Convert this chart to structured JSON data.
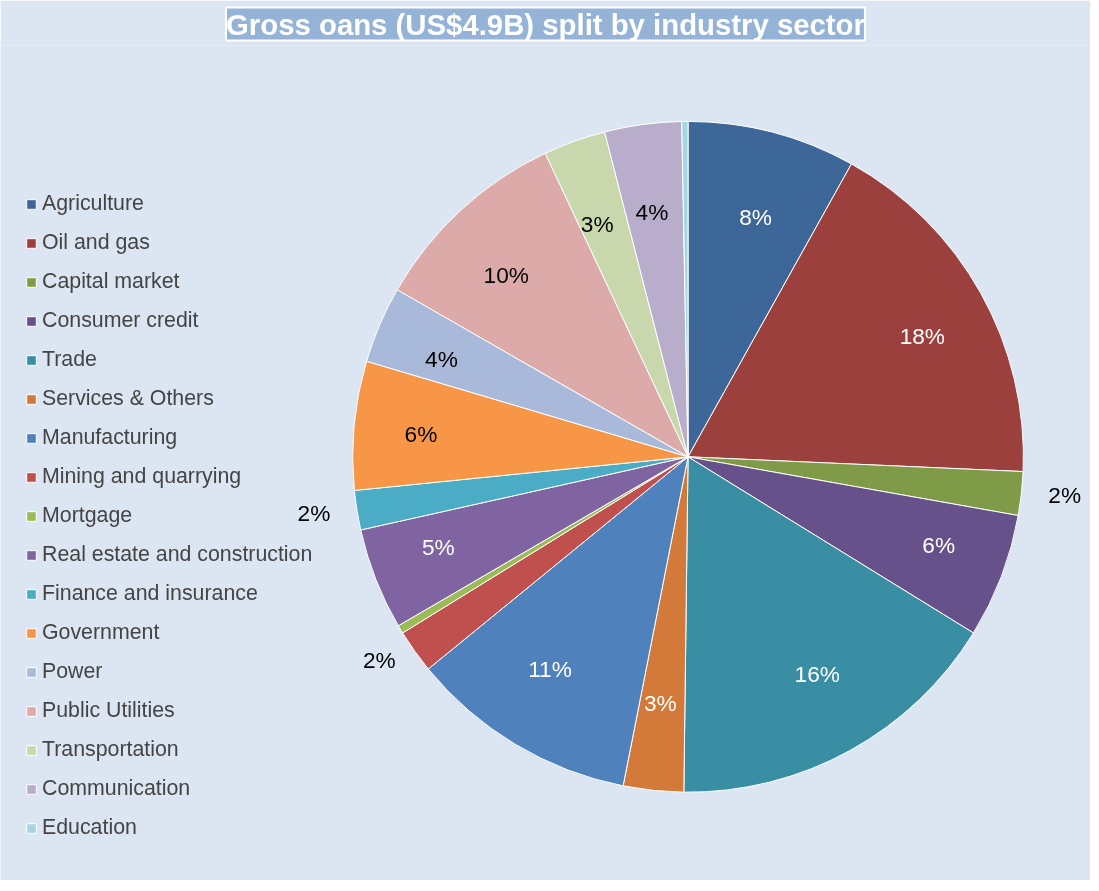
{
  "chart_data": {
    "type": "pie",
    "title": "Gross oans (US$4.9B) split by industry sector",
    "categories": [
      "Agriculture",
      "Oil and gas",
      "Capital market",
      "Consumer credit",
      "Trade",
      "Services & Others",
      "Manufacturing",
      "Mining and quarrying",
      "Mortgage",
      "Real estate and construction",
      "Finance and insurance",
      "Government",
      "Power",
      "Public Utilities",
      "Transportation",
      "Communication",
      "Education"
    ],
    "values": [
      8.1,
      17.6,
      2.1,
      6.0,
      16.4,
      2.9,
      11.0,
      2.1,
      0.4,
      4.9,
      1.9,
      6.2,
      3.7,
      9.7,
      3.0,
      3.7,
      0.3
    ],
    "value_labels": [
      "8%",
      "18%",
      "2%",
      "6%",
      "16%",
      "3%",
      "11%",
      "2%",
      null,
      "5%",
      "2%",
      "6%",
      "4%",
      "10%",
      "3%",
      "4%",
      null
    ],
    "colors": [
      "#3e6799",
      "#9b403d",
      "#7f9b48",
      "#67518a",
      "#3a8ea4",
      "#d3793a",
      "#4f81bd",
      "#c0504d",
      "#9bbb59",
      "#8064a2",
      "#4bacc6",
      "#f79646",
      "#a9b9d9",
      "#dcaaa9",
      "#c9d8ac",
      "#b8aecb",
      "#a5d6e3"
    ],
    "legend": "left"
  }
}
